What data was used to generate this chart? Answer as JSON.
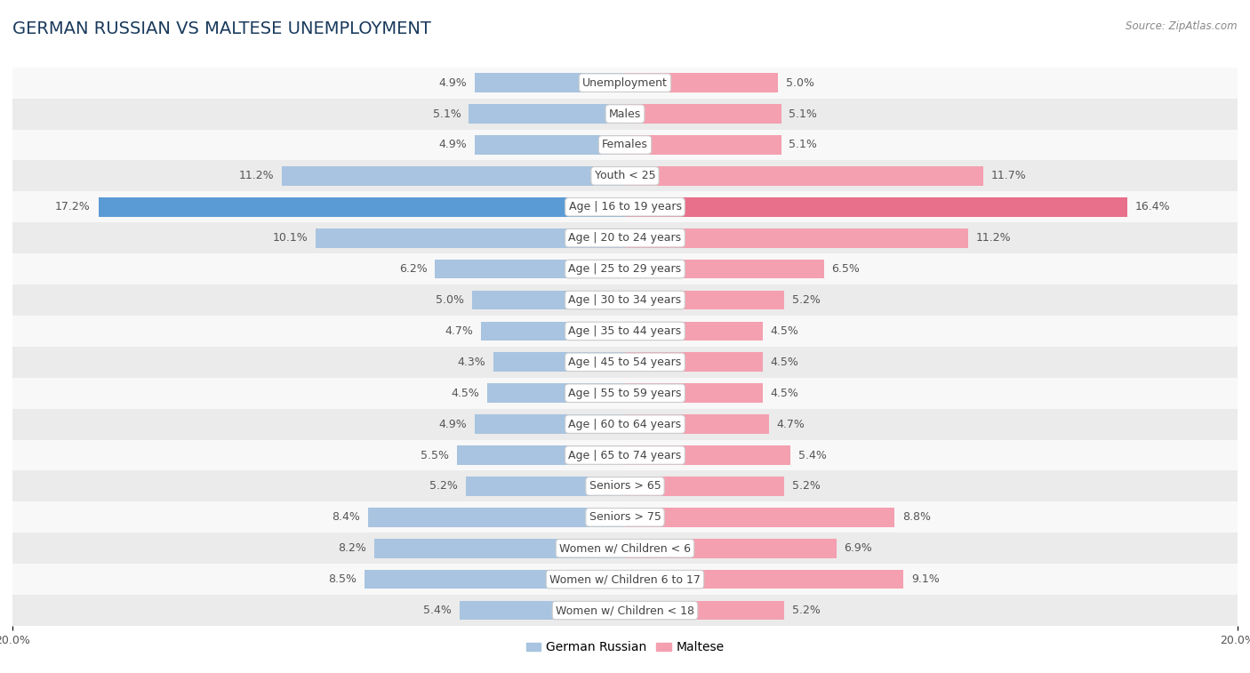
{
  "title": "GERMAN RUSSIAN VS MALTESE UNEMPLOYMENT",
  "source": "Source: ZipAtlas.com",
  "categories": [
    "Unemployment",
    "Males",
    "Females",
    "Youth < 25",
    "Age | 16 to 19 years",
    "Age | 20 to 24 years",
    "Age | 25 to 29 years",
    "Age | 30 to 34 years",
    "Age | 35 to 44 years",
    "Age | 45 to 54 years",
    "Age | 55 to 59 years",
    "Age | 60 to 64 years",
    "Age | 65 to 74 years",
    "Seniors > 65",
    "Seniors > 75",
    "Women w/ Children < 6",
    "Women w/ Children 6 to 17",
    "Women w/ Children < 18"
  ],
  "german_russian": [
    4.9,
    5.1,
    4.9,
    11.2,
    17.2,
    10.1,
    6.2,
    5.0,
    4.7,
    4.3,
    4.5,
    4.9,
    5.5,
    5.2,
    8.4,
    8.2,
    8.5,
    5.4
  ],
  "maltese": [
    5.0,
    5.1,
    5.1,
    11.7,
    16.4,
    11.2,
    6.5,
    5.2,
    4.5,
    4.5,
    4.5,
    4.7,
    5.4,
    5.2,
    8.8,
    6.9,
    9.1,
    5.2
  ],
  "color_german_russian": "#a8c4e0",
  "color_maltese": "#f4a0b0",
  "color_highlight_gr": "#5b9bd5",
  "color_highlight_m": "#e8708a",
  "background_row_odd": "#ebebeb",
  "background_row_even": "#f8f8f8",
  "axis_max": 20.0,
  "bar_height": 0.62,
  "label_fontsize": 9,
  "category_fontsize": 9,
  "title_fontsize": 14,
  "value_color": "#555555"
}
